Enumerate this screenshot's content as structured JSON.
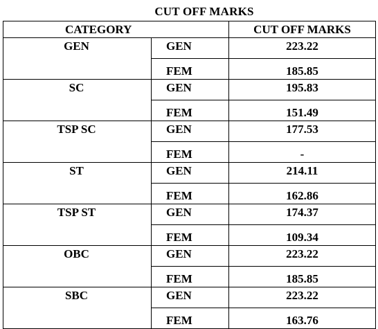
{
  "title": "CUT OFF MARKS",
  "header": {
    "category": "CATEGORY",
    "marks": "CUT OFF MARKS"
  },
  "rows": [
    {
      "category": "GEN",
      "gen_label": "GEN",
      "gen_value": "223.22",
      "fem_label": "FEM",
      "fem_value": "185.85"
    },
    {
      "category": "SC",
      "gen_label": "GEN",
      "gen_value": "195.83",
      "fem_label": "FEM",
      "fem_value": "151.49"
    },
    {
      "category": "TSP SC",
      "gen_label": "GEN",
      "gen_value": "177.53",
      "fem_label": "FEM",
      "fem_value": "-"
    },
    {
      "category": "ST",
      "gen_label": "GEN",
      "gen_value": "214.11",
      "fem_label": "FEM",
      "fem_value": "162.86"
    },
    {
      "category": "TSP ST",
      "gen_label": "GEN",
      "gen_value": "174.37",
      "fem_label": "FEM",
      "fem_value": "109.34"
    },
    {
      "category": "OBC",
      "gen_label": "GEN",
      "gen_value": "223.22",
      "fem_label": "FEM",
      "fem_value": "185.85"
    },
    {
      "category": "SBC",
      "gen_label": "GEN",
      "gen_value": "223.22",
      "fem_label": "FEM",
      "fem_value": "163.76"
    }
  ]
}
